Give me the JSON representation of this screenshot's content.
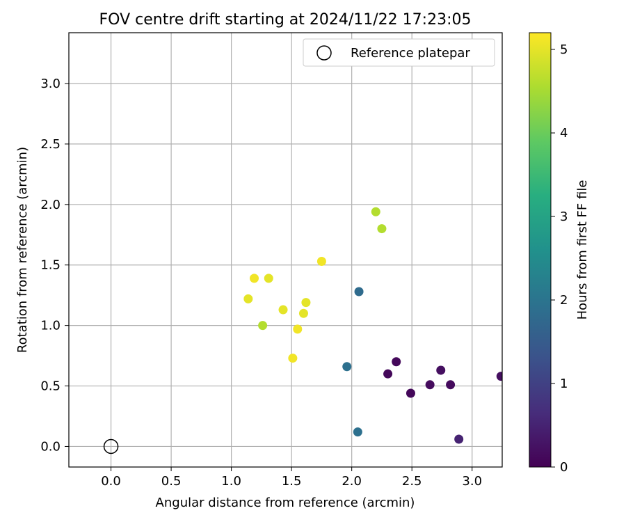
{
  "chart_data": {
    "type": "scatter",
    "title": "FOV centre drift starting at 2024/11/22 17:23:05",
    "xlabel": "Angular distance from reference (arcmin)",
    "ylabel": "Rotation from reference (arcmin)",
    "xlim": [
      -0.35,
      3.25
    ],
    "ylim": [
      -0.17,
      3.42
    ],
    "x_ticks": [
      0.0,
      0.5,
      1.0,
      1.5,
      2.0,
      2.5,
      3.0
    ],
    "x_tick_labels": [
      "0.0",
      "0.5",
      "1.0",
      "1.5",
      "2.0",
      "2.5",
      "3.0"
    ],
    "y_ticks": [
      0.0,
      0.5,
      1.0,
      1.5,
      2.0,
      2.5,
      3.0
    ],
    "y_tick_labels": [
      "0.0",
      "0.5",
      "1.0",
      "1.5",
      "2.0",
      "2.5",
      "3.0"
    ],
    "grid": true,
    "legend": {
      "position": "top-right",
      "entries": [
        {
          "label": "Reference platepar",
          "marker": "open-circle",
          "x": 0.0,
          "y": 0.0
        }
      ]
    },
    "colorbar": {
      "label": "Hours from first FF file",
      "colormap": "viridis",
      "range": [
        0,
        5.2
      ],
      "ticks": [
        0,
        1,
        2,
        3,
        4,
        5
      ],
      "tick_labels": [
        "0",
        "1",
        "2",
        "3",
        "4",
        "5"
      ]
    },
    "points": [
      {
        "x": 2.37,
        "y": 0.7,
        "c": 0.1
      },
      {
        "x": 2.3,
        "y": 0.6,
        "c": 0.1
      },
      {
        "x": 2.49,
        "y": 0.44,
        "c": 0.1
      },
      {
        "x": 2.65,
        "y": 0.51,
        "c": 0.15
      },
      {
        "x": 2.74,
        "y": 0.63,
        "c": 0.2
      },
      {
        "x": 2.82,
        "y": 0.51,
        "c": 0.15
      },
      {
        "x": 3.24,
        "y": 0.58,
        "c": 0.2
      },
      {
        "x": 2.89,
        "y": 0.06,
        "c": 0.5
      },
      {
        "x": 2.06,
        "y": 1.28,
        "c": 1.8
      },
      {
        "x": 1.96,
        "y": 0.66,
        "c": 1.9
      },
      {
        "x": 2.05,
        "y": 0.12,
        "c": 1.9
      },
      {
        "x": 2.2,
        "y": 1.94,
        "c": 4.6
      },
      {
        "x": 2.25,
        "y": 1.8,
        "c": 4.6
      },
      {
        "x": 1.26,
        "y": 1.0,
        "c": 4.6
      },
      {
        "x": 1.75,
        "y": 1.53,
        "c": 5.1
      },
      {
        "x": 1.19,
        "y": 1.39,
        "c": 5.1
      },
      {
        "x": 1.31,
        "y": 1.39,
        "c": 5.0
      },
      {
        "x": 1.14,
        "y": 1.22,
        "c": 5.0
      },
      {
        "x": 1.43,
        "y": 1.13,
        "c": 5.0
      },
      {
        "x": 1.62,
        "y": 1.19,
        "c": 5.0
      },
      {
        "x": 1.6,
        "y": 1.1,
        "c": 5.0
      },
      {
        "x": 1.55,
        "y": 0.97,
        "c": 5.1
      },
      {
        "x": 1.51,
        "y": 0.73,
        "c": 5.1
      }
    ]
  }
}
